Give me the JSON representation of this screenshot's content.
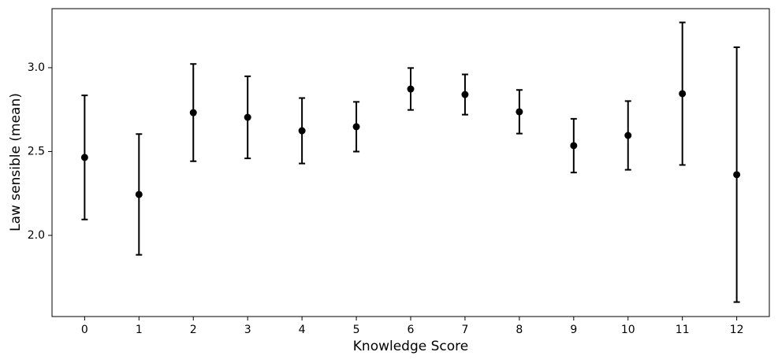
{
  "chart_data": {
    "type": "errorbar",
    "x_label": "Knowledge Score",
    "y_label": "Law sensible (mean)",
    "x": [
      0,
      1,
      2,
      3,
      4,
      5,
      6,
      7,
      8,
      9,
      10,
      11,
      12
    ],
    "values": [
      2.465,
      2.244,
      2.732,
      2.704,
      2.624,
      2.648,
      2.873,
      2.84,
      2.737,
      2.535,
      2.596,
      2.845,
      2.362
    ],
    "errors": [
      0.37,
      0.36,
      0.29,
      0.245,
      0.195,
      0.148,
      0.125,
      0.12,
      0.13,
      0.16,
      0.205,
      0.425,
      0.76
    ],
    "color": "#000000",
    "xlim": [
      -0.6,
      12.6
    ],
    "xticks": [
      0,
      1,
      2,
      3,
      4,
      5,
      6,
      7,
      8,
      9,
      10,
      11,
      12
    ],
    "ylim": [
      1.516,
      3.352
    ],
    "yticks": [
      {
        "value": 2.0,
        "label": "2.0"
      },
      {
        "value": 2.5,
        "label": "2.5"
      },
      {
        "value": 3.0,
        "label": "3.0"
      }
    ],
    "grid": false
  }
}
